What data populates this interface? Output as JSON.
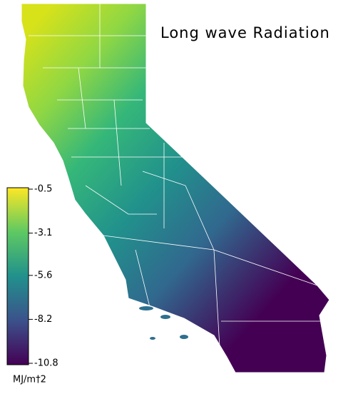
{
  "title": "Long wave Radiation",
  "colorbar": {
    "label": "MJ/m†2",
    "lim": [
      -10.8,
      -0.5
    ],
    "ticks": [
      -0.5,
      -3.1,
      -5.6,
      -8.2,
      -10.8
    ]
  }
}
